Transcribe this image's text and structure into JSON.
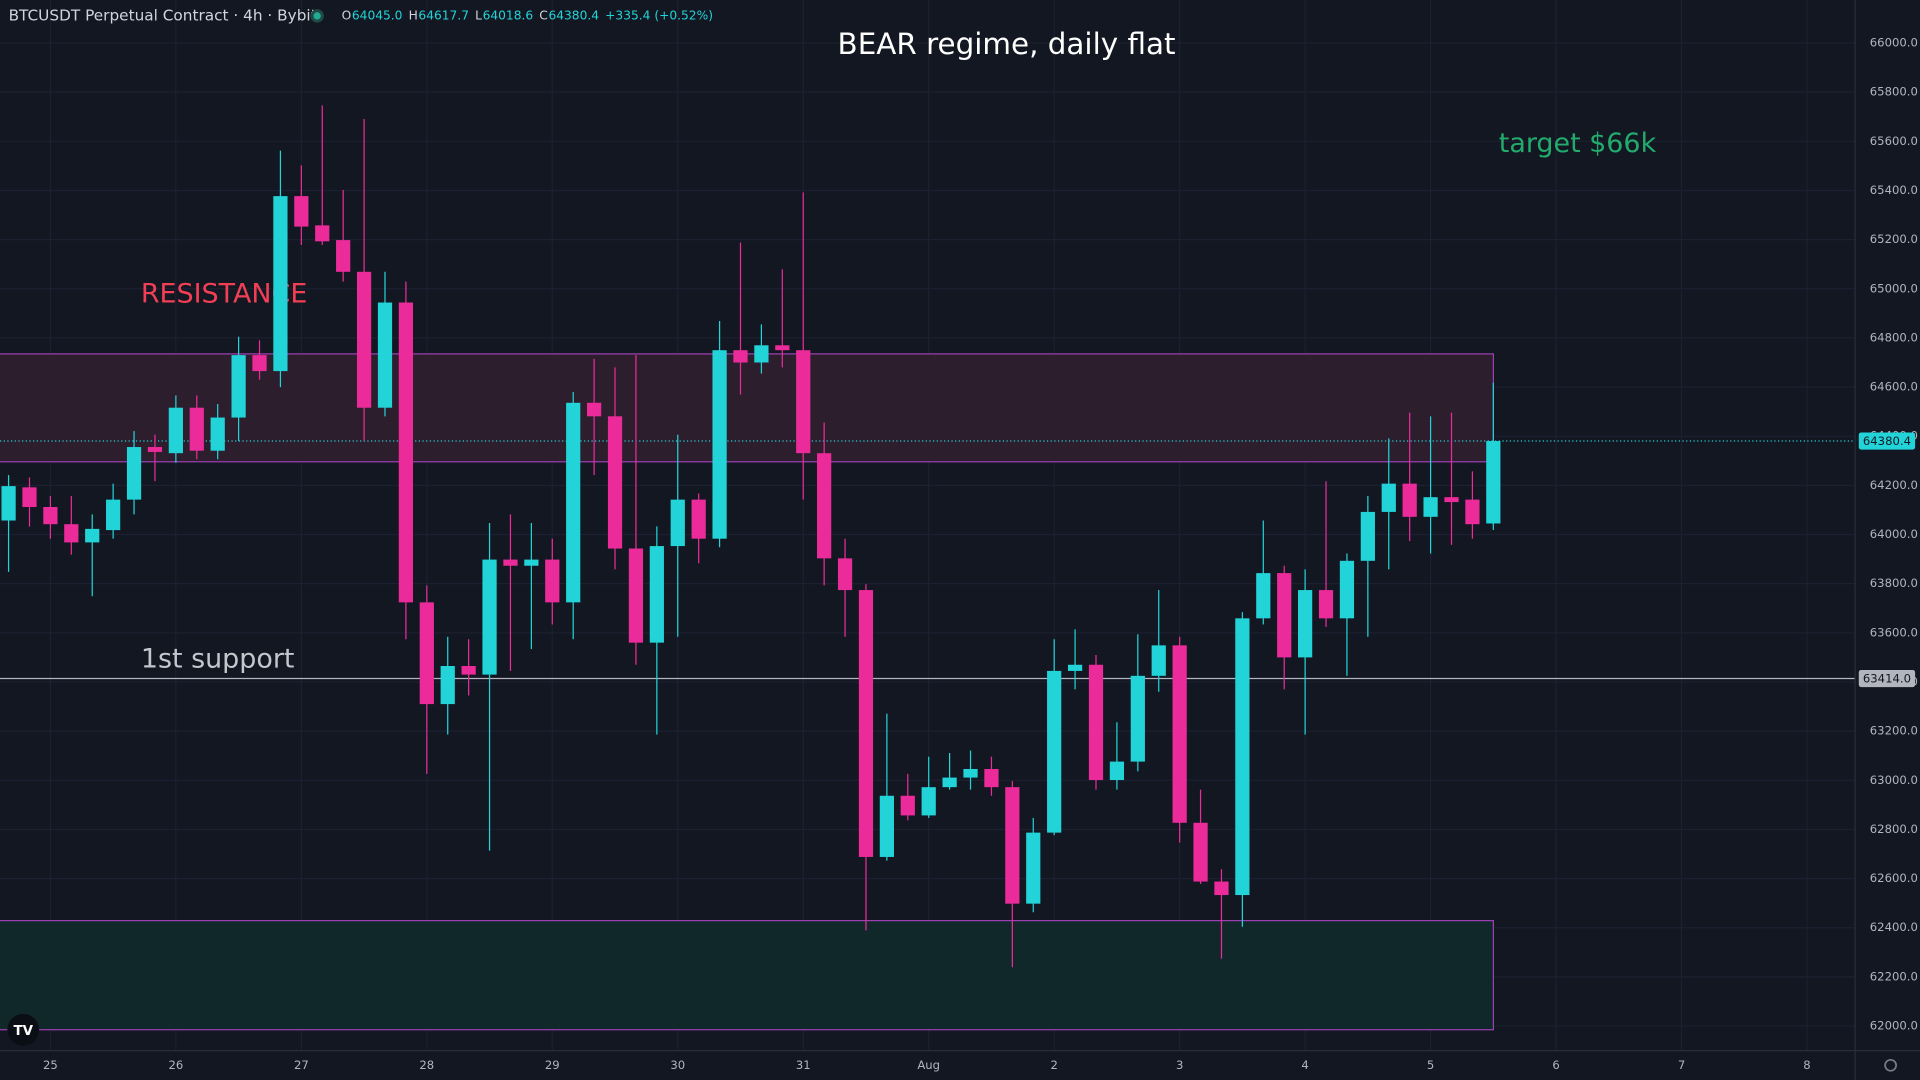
{
  "chart_data": {
    "type": "candlestick",
    "title": "BEAR regime, daily flat",
    "header": {
      "symbol": "BTCUSDT Perpetual Contract · 4h · Bybit",
      "ohlc": [
        {
          "label": "O",
          "value": "64045.0"
        },
        {
          "label": "H",
          "value": "64617.7"
        },
        {
          "label": "L",
          "value": "64018.6"
        },
        {
          "label": "C",
          "value": "64380.4"
        }
      ],
      "change": "+335.4 (+0.52%)"
    },
    "annotations": [
      {
        "text": "RESISTANCE",
        "color": "#f23f55"
      },
      {
        "text": "1st support",
        "color": "#c3c6cc"
      },
      {
        "text": "target $66k",
        "color": "#22ab6d"
      }
    ],
    "up_color": "#22d3d8",
    "down_color": "#ec2b9a",
    "series": {
      "open": [
        64057,
        64192,
        64112,
        64042,
        63968,
        64018,
        64142,
        64356,
        64331,
        64516,
        64341,
        64476,
        64730,
        64665,
        65377,
        65258,
        65198,
        65069,
        64516,
        64944,
        63724,
        63310,
        63465,
        63430,
        63898,
        63873,
        63898,
        63724,
        64536,
        64481,
        63943,
        63560,
        63953,
        64142,
        63983,
        64750,
        64700,
        64770,
        64750,
        64331,
        63903,
        63774,
        62688,
        62937,
        62857,
        62972,
        63011,
        63046,
        62972,
        62498,
        62787,
        63445,
        63470,
        63001,
        63076,
        63425,
        63549,
        62827,
        62588,
        62533,
        63659,
        63843,
        63500,
        63774,
        63659,
        63893,
        64092,
        64207,
        64072,
        64152,
        64142,
        64045.0
      ],
      "high": [
        64242,
        64232,
        64157,
        64157,
        64082,
        64207,
        64421,
        64406,
        64566,
        64566,
        64531,
        64805,
        64790,
        65562,
        65502,
        65746,
        65402,
        65691,
        65069,
        65029,
        63793,
        63584,
        63574,
        64047,
        64082,
        64047,
        63983,
        64580,
        64715,
        64680,
        64730,
        64033,
        64406,
        64167,
        64869,
        65188,
        64855,
        65079,
        65392,
        64456,
        63983,
        63798,
        63271,
        63026,
        63096,
        63111,
        63121,
        63096,
        62997,
        62847,
        63574,
        63614,
        63510,
        63236,
        63594,
        63774,
        63584,
        62962,
        62638,
        63684,
        64057,
        63873,
        63858,
        64217,
        63923,
        64157,
        64391,
        64496,
        64481,
        64496,
        64257,
        64617.7
      ],
      "low": [
        63848,
        64032,
        63983,
        63918,
        63749,
        63983,
        64082,
        64217,
        64292,
        64306,
        64306,
        64381,
        64630,
        64600,
        65178,
        65178,
        65029,
        64381,
        64481,
        63574,
        63026,
        63186,
        63345,
        62713,
        63445,
        63534,
        63634,
        63574,
        64242,
        63858,
        63470,
        63186,
        63584,
        63883,
        63948,
        64570,
        64655,
        64680,
        64142,
        63793,
        63584,
        62389,
        62673,
        62837,
        62847,
        62962,
        62962,
        62937,
        62239,
        62463,
        62777,
        63370,
        62962,
        62962,
        63036,
        63360,
        62747,
        62578,
        62274,
        62404,
        63634,
        63370,
        63186,
        63624,
        63425,
        63584,
        63858,
        63973,
        63923,
        63958,
        63983,
        64018.6
      ],
      "close": [
        64197,
        64112,
        64042,
        63968,
        64023,
        64142,
        64356,
        64336,
        64516,
        64341,
        64476,
        64730,
        64665,
        65377,
        65253,
        65193,
        65069,
        64516,
        64944,
        63724,
        63310,
        63465,
        63430,
        63898,
        63873,
        63898,
        63724,
        64536,
        64481,
        63943,
        63560,
        63953,
        64142,
        63983,
        64750,
        64700,
        64770,
        64750,
        64331,
        63903,
        63774,
        62688,
        62937,
        62857,
        62972,
        63011,
        63046,
        62972,
        62498,
        62787,
        63445,
        63470,
        63001,
        63076,
        63425,
        63549,
        62827,
        62588,
        62533,
        63659,
        63843,
        63500,
        63774,
        63659,
        63893,
        64092,
        64207,
        64072,
        64152,
        64132,
        64042,
        64380.4
      ]
    },
    "zones": [
      {
        "y0": 64296,
        "y1": 64735,
        "fill": "#2d1e2e",
        "border": "#9c3fb3"
      },
      {
        "y0": 61985,
        "y1": 62429,
        "fill": "#11282b",
        "border": "#9c3fb3"
      }
    ],
    "hlines": [
      {
        "value": 64380.4,
        "label": "64380.4",
        "color": "#22d3d8",
        "style": "dotted"
      },
      {
        "value": 63414,
        "label": "63414.0",
        "color": "#b2b5be",
        "style": "solid"
      }
    ],
    "xlim": [
      -0.41,
      88.3
    ],
    "xticks": [
      {
        "value": 2,
        "label": "25"
      },
      {
        "value": 8,
        "label": "26"
      },
      {
        "value": 14,
        "label": "27"
      },
      {
        "value": 20,
        "label": "28"
      },
      {
        "value": 26,
        "label": "29"
      },
      {
        "value": 32,
        "label": "30"
      },
      {
        "value": 38,
        "label": "31"
      },
      {
        "value": 44,
        "label": "Aug"
      },
      {
        "value": 50,
        "label": "2"
      },
      {
        "value": 56,
        "label": "3"
      },
      {
        "value": 62,
        "label": "4"
      },
      {
        "value": 68,
        "label": "5"
      },
      {
        "value": 74,
        "label": "6"
      },
      {
        "value": 80,
        "label": "7"
      },
      {
        "value": 86,
        "label": "8"
      }
    ],
    "ylim": [
      61900,
      66175
    ],
    "yticks": [
      {
        "value": 62000,
        "label": "62000.0"
      },
      {
        "value": 62200,
        "label": "62200.0"
      },
      {
        "value": 62400,
        "label": "62400.0"
      },
      {
        "value": 62600,
        "label": "62600.0"
      },
      {
        "value": 62800,
        "label": "62800.0"
      },
      {
        "value": 63000,
        "label": "63000.0"
      },
      {
        "value": 63200,
        "label": "63200.0"
      },
      {
        "value": 63400,
        "label": "63400.0"
      },
      {
        "value": 63600,
        "label": "63600.0"
      },
      {
        "value": 63800,
        "label": "63800.0"
      },
      {
        "value": 64000,
        "label": "64000.0"
      },
      {
        "value": 64200,
        "label": "64200.0"
      },
      {
        "value": 64400,
        "label": "64400.0"
      },
      {
        "value": 64600,
        "label": "64600.0"
      },
      {
        "value": 64800,
        "label": "64800.0"
      },
      {
        "value": 65000,
        "label": "65000.0"
      },
      {
        "value": 65200,
        "label": "65200.0"
      },
      {
        "value": 65400,
        "label": "65400.0"
      },
      {
        "value": 65600,
        "label": "65600.0"
      },
      {
        "value": 65800,
        "label": "65800.0"
      },
      {
        "value": 66000,
        "label": "66000.0"
      }
    ],
    "grid": true
  }
}
